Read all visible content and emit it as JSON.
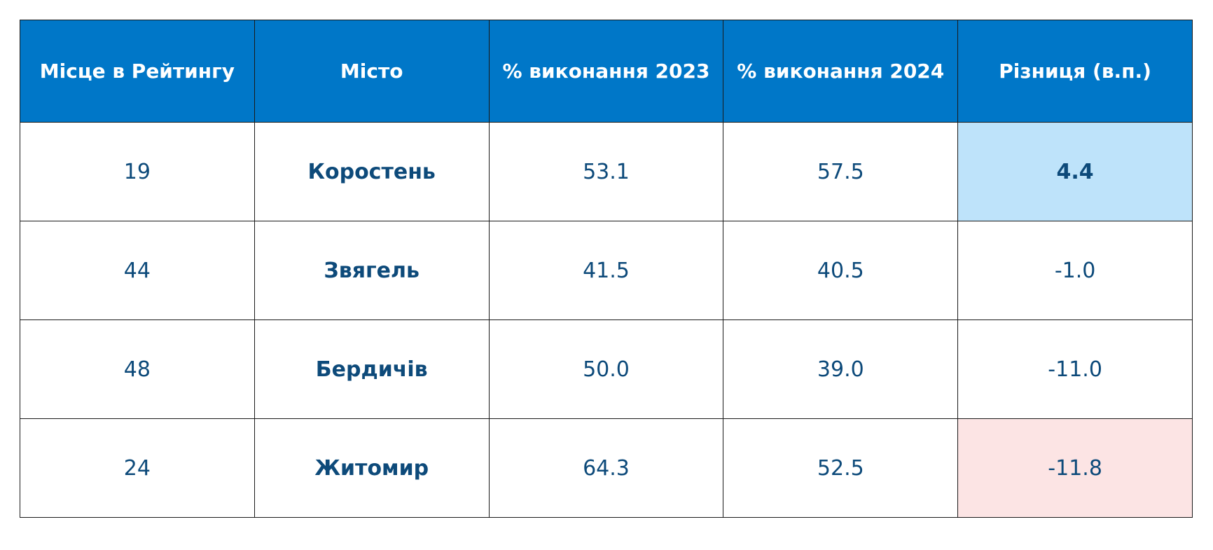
{
  "table": {
    "header": [
      "Місце в Рейтингу",
      "Місто",
      "% виконання 2023",
      "% виконання 2024",
      "Різниця (в.п.)"
    ],
    "rows": [
      [
        "19",
        "Коростень",
        "53.1",
        "57.5",
        "4.4"
      ],
      [
        "44",
        "Звягель",
        "41.5",
        "40.5",
        "-1.0"
      ],
      [
        "48",
        "Бердичів",
        "50.0",
        "39.0",
        "-11.0"
      ],
      [
        "24",
        "Житомир",
        "64.3",
        "52.5",
        "-11.8"
      ]
    ]
  }
}
